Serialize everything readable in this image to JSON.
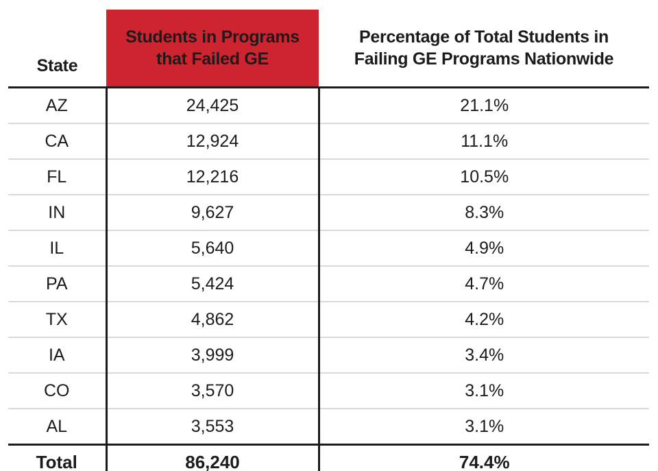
{
  "colors": {
    "header_red": "#CE2430",
    "rule_black": "#1b1b1b",
    "row_divider_gray": "#d9d9d9",
    "background": "#ffffff"
  },
  "table": {
    "columns": [
      {
        "id": "state",
        "label": "State",
        "lines": [
          "State"
        ]
      },
      {
        "id": "students",
        "label": "Students in Programs that Failed GE",
        "lines": [
          "Students in Programs",
          "that Failed GE"
        ]
      },
      {
        "id": "pct",
        "label": "Percentage of Total Students in Failing GE Programs Nationwide",
        "lines": [
          "Percentage of Total Students in",
          "Failing GE Programs Nationwide"
        ]
      }
    ],
    "rows": [
      {
        "state": "AZ",
        "students": "24,425",
        "pct": "21.1%"
      },
      {
        "state": "CA",
        "students": "12,924",
        "pct": "11.1%"
      },
      {
        "state": "FL",
        "students": "12,216",
        "pct": "10.5%"
      },
      {
        "state": "IN",
        "students": "9,627",
        "pct": "8.3%"
      },
      {
        "state": "IL",
        "students": "5,640",
        "pct": "4.9%"
      },
      {
        "state": "PA",
        "students": "5,424",
        "pct": "4.7%"
      },
      {
        "state": "TX",
        "students": "4,862",
        "pct": "4.2%"
      },
      {
        "state": "IA",
        "students": "3,999",
        "pct": "3.4%"
      },
      {
        "state": "CO",
        "students": "3,570",
        "pct": "3.1%"
      },
      {
        "state": "AL",
        "students": "3,553",
        "pct": "3.1%"
      }
    ],
    "total": {
      "label": "Total",
      "students": "86,240",
      "pct": "74.4%"
    }
  },
  "chart_data": {
    "type": "table",
    "columns": [
      "State",
      "Students in Programs that Failed GE",
      "Percentage of Total Students in Failing GE Programs Nationwide"
    ],
    "rows": [
      [
        "AZ",
        24425,
        21.1
      ],
      [
        "CA",
        12924,
        11.1
      ],
      [
        "FL",
        12216,
        10.5
      ],
      [
        "IN",
        9627,
        8.3
      ],
      [
        "IL",
        5640,
        4.9
      ],
      [
        "PA",
        5424,
        4.7
      ],
      [
        "TX",
        4862,
        4.2
      ],
      [
        "IA",
        3999,
        3.4
      ],
      [
        "CO",
        3570,
        3.1
      ],
      [
        "AL",
        3553,
        3.1
      ]
    ],
    "total_row": [
      "Total",
      86240,
      74.4
    ],
    "notes": "Second column header has red (#CE2430) highlight background; units: students (count), percent of nationwide total"
  }
}
